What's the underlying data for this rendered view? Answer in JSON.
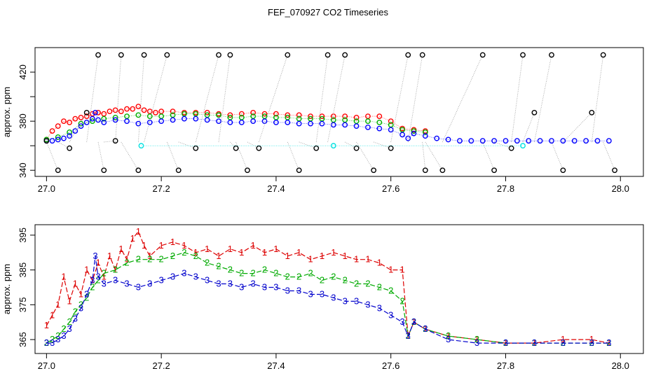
{
  "chart_data": {
    "title": "FEF_070927  CO2 Timeseries",
    "panels": [
      {
        "type": "scatter",
        "ylabel": "approx. ppm",
        "xlim": [
          26.98,
          28.04
        ],
        "ylim": [
          335,
          440
        ],
        "xticks": [
          27.0,
          27.2,
          27.4,
          27.6,
          27.8,
          28.0
        ],
        "xtick_labels": [
          "27.0",
          "27.2",
          "27.4",
          "27.6",
          "27.8",
          "28.0"
        ],
        "yticks": [
          340,
          360,
          380,
          400,
          420
        ],
        "ytick_labels": [
          "340",
          "",
          "380",
          "",
          "420"
        ],
        "series": [
          {
            "name": "red",
            "color": "#ff0000",
            "x": [
              27.0,
              27.01,
              27.02,
              27.03,
              27.04,
              27.05,
              27.06,
              27.07,
              27.08,
              27.09,
              27.1,
              27.11,
              27.12,
              27.13,
              27.14,
              27.15,
              27.16,
              27.17,
              27.18,
              27.19,
              27.2,
              27.22,
              27.24,
              27.26,
              27.28,
              27.3,
              27.32,
              27.34,
              27.36,
              27.38,
              27.4,
              27.42,
              27.44,
              27.46,
              27.48,
              27.5,
              27.52,
              27.54,
              27.56,
              27.58,
              27.6,
              27.62,
              27.64,
              27.66
            ],
            "y": [
              365,
              372,
              376,
              380,
              379,
              382,
              383,
              384,
              386,
              387,
              386,
              388,
              389,
              388,
              390,
              390,
              392,
              389,
              388,
              387,
              388,
              388,
              387,
              387,
              387,
              386,
              385,
              386,
              387,
              386,
              386,
              385,
              385,
              384,
              384,
              384,
              384,
              383,
              384,
              384,
              380,
              374,
              373,
              372
            ]
          },
          {
            "name": "green",
            "color": "#00b000",
            "x": [
              27.0,
              27.02,
              27.04,
              27.06,
              27.08,
              27.1,
              27.12,
              27.14,
              27.16,
              27.18,
              27.2,
              27.22,
              27.24,
              27.26,
              27.28,
              27.3,
              27.32,
              27.34,
              27.36,
              27.38,
              27.4,
              27.42,
              27.44,
              27.46,
              27.48,
              27.5,
              27.52,
              27.54,
              27.56,
              27.58,
              27.6,
              27.62,
              27.64,
              27.66
            ],
            "y": [
              365,
              367,
              371,
              378,
              380,
              382,
              383,
              384,
              385,
              384,
              384,
              385,
              386,
              386,
              385,
              385,
              383,
              383,
              384,
              384,
              383,
              383,
              382,
              382,
              382,
              381,
              381,
              380,
              380,
              379,
              377,
              373,
              372,
              371
            ]
          },
          {
            "name": "blue",
            "color": "#0000ff",
            "x": [
              27.0,
              27.01,
              27.02,
              27.03,
              27.04,
              27.05,
              27.06,
              27.07,
              27.08,
              27.085,
              27.09,
              27.1,
              27.12,
              27.14,
              27.16,
              27.18,
              27.2,
              27.22,
              27.24,
              27.26,
              27.28,
              27.3,
              27.32,
              27.34,
              27.36,
              27.38,
              27.4,
              27.42,
              27.44,
              27.46,
              27.48,
              27.5,
              27.52,
              27.54,
              27.56,
              27.58,
              27.6,
              27.62,
              27.63,
              27.64,
              27.66,
              27.68,
              27.7,
              27.72,
              27.74,
              27.76,
              27.78,
              27.8,
              27.82,
              27.84,
              27.86,
              27.88,
              27.9,
              27.92,
              27.94,
              27.96,
              27.98
            ],
            "y": [
              364,
              364,
              365,
              366,
              368,
              372,
              376,
              379,
              382,
              387,
              381,
              379,
              381,
              380,
              378,
              379,
              380,
              381,
              382,
              382,
              381,
              380,
              379,
              379,
              380,
              380,
              379,
              379,
              378,
              378,
              378,
              377,
              377,
              376,
              375,
              374,
              373,
              369,
              366,
              370,
              368,
              366,
              365,
              364,
              364,
              364,
              364,
              364,
              364,
              364,
              364,
              364,
              364,
              364,
              364,
              364,
              364
            ]
          },
          {
            "name": "black",
            "color": "#000000",
            "x": [
              27.0,
              27.02,
              27.04,
              27.07,
              27.09,
              27.1,
              27.12,
              27.13,
              27.16,
              27.17,
              27.21,
              27.23,
              27.26,
              27.3,
              27.32,
              27.33,
              27.35,
              27.37,
              27.42,
              27.44,
              27.47,
              27.49,
              27.52,
              27.54,
              27.57,
              27.6,
              27.63,
              27.655,
              27.66,
              27.69,
              27.76,
              27.78,
              27.81,
              27.83,
              27.85,
              27.88,
              27.9,
              27.95,
              27.97,
              27.99
            ],
            "y": [
              364,
              340,
              358,
              387,
              434,
              340,
              364,
              434,
              340,
              434,
              434,
              340,
              358,
              434,
              434,
              358,
              340,
              358,
              434,
              340,
              358,
              434,
              434,
              358,
              340,
              358,
              434,
              434,
              340,
              340,
              434,
              340,
              358,
              434,
              387,
              434,
              340,
              387,
              434,
              340
            ]
          },
          {
            "name": "cyan",
            "color": "#00e0e0",
            "x": [
              27.165,
              27.5,
              27.83
            ],
            "y": [
              360,
              360,
              360
            ]
          }
        ]
      },
      {
        "type": "line",
        "ylabel": "approx. ppm",
        "xlim": [
          26.98,
          28.04
        ],
        "ylim": [
          361,
          398
        ],
        "xticks": [
          27.0,
          27.2,
          27.4,
          27.6,
          27.8,
          28.0
        ],
        "xtick_labels": [
          "27.0",
          "27.2",
          "27.4",
          "27.6",
          "27.8",
          "28.0"
        ],
        "yticks": [
          365,
          375,
          385,
          395
        ],
        "ytick_labels": [
          "365",
          "375",
          "385",
          "395"
        ],
        "series": [
          {
            "name": "1",
            "label": "1",
            "color": "#dd0000",
            "x": [
              27.0,
              27.01,
              27.02,
              27.03,
              27.04,
              27.05,
              27.06,
              27.07,
              27.08,
              27.09,
              27.1,
              27.11,
              27.12,
              27.13,
              27.14,
              27.15,
              27.16,
              27.17,
              27.18,
              27.2,
              27.22,
              27.24,
              27.26,
              27.28,
              27.3,
              27.32,
              27.34,
              27.36,
              27.38,
              27.4,
              27.42,
              27.44,
              27.46,
              27.48,
              27.5,
              27.52,
              27.54,
              27.56,
              27.58,
              27.6,
              27.62,
              27.63,
              27.64,
              27.66,
              27.7,
              27.75,
              27.8,
              27.85,
              27.9,
              27.95,
              27.98
            ],
            "y": [
              369,
              372,
              375,
              383,
              376,
              381,
              378,
              385,
              382,
              387,
              383,
              389,
              385,
              391,
              388,
              394,
              396,
              392,
              389,
              392,
              393,
              392,
              390,
              391,
              389,
              391,
              390,
              392,
              390,
              391,
              389,
              390,
              388,
              389,
              390,
              389,
              388,
              388,
              387,
              385,
              385,
              366,
              370,
              368,
              366,
              365,
              364,
              364,
              365,
              365,
              364
            ]
          },
          {
            "name": "2",
            "label": "2",
            "color": "#00aa00",
            "x": [
              27.0,
              27.01,
              27.02,
              27.03,
              27.04,
              27.05,
              27.06,
              27.07,
              27.08,
              27.09,
              27.1,
              27.12,
              27.14,
              27.16,
              27.18,
              27.2,
              27.22,
              27.24,
              27.26,
              27.28,
              27.3,
              27.32,
              27.34,
              27.36,
              27.38,
              27.4,
              27.42,
              27.44,
              27.46,
              27.48,
              27.5,
              27.52,
              27.54,
              27.56,
              27.58,
              27.6,
              27.62,
              27.63,
              27.64,
              27.66,
              27.7,
              27.75,
              27.8,
              27.85,
              27.9,
              27.95,
              27.98
            ],
            "y": [
              364,
              365,
              366,
              368,
              370,
              373,
              375,
              377,
              380,
              382,
              384,
              385,
              387,
              388,
              388,
              388,
              389,
              390,
              389,
              387,
              386,
              385,
              384,
              384,
              385,
              384,
              383,
              383,
              384,
              382,
              383,
              382,
              381,
              381,
              380,
              379,
              376,
              366,
              370,
              368,
              366,
              365,
              364,
              364,
              364,
              364,
              364
            ]
          },
          {
            "name": "3",
            "label": "3",
            "color": "#0000cc",
            "x": [
              27.0,
              27.01,
              27.02,
              27.03,
              27.04,
              27.05,
              27.06,
              27.07,
              27.08,
              27.085,
              27.09,
              27.1,
              27.12,
              27.14,
              27.16,
              27.18,
              27.2,
              27.22,
              27.24,
              27.26,
              27.28,
              27.3,
              27.32,
              27.34,
              27.36,
              27.38,
              27.4,
              27.42,
              27.44,
              27.46,
              27.48,
              27.5,
              27.52,
              27.54,
              27.56,
              27.58,
              27.6,
              27.62,
              27.63,
              27.64,
              27.66,
              27.7,
              27.75,
              27.8,
              27.85,
              27.9,
              27.95,
              27.98
            ],
            "y": [
              364,
              364,
              365,
              366,
              368,
              371,
              374,
              378,
              382,
              389,
              383,
              381,
              382,
              381,
              380,
              381,
              382,
              383,
              384,
              383,
              382,
              381,
              381,
              380,
              381,
              380,
              380,
              379,
              379,
              378,
              378,
              377,
              376,
              376,
              375,
              374,
              372,
              370,
              366,
              370,
              368,
              365,
              364,
              364,
              364,
              364,
              364,
              364
            ]
          }
        ]
      }
    ]
  }
}
